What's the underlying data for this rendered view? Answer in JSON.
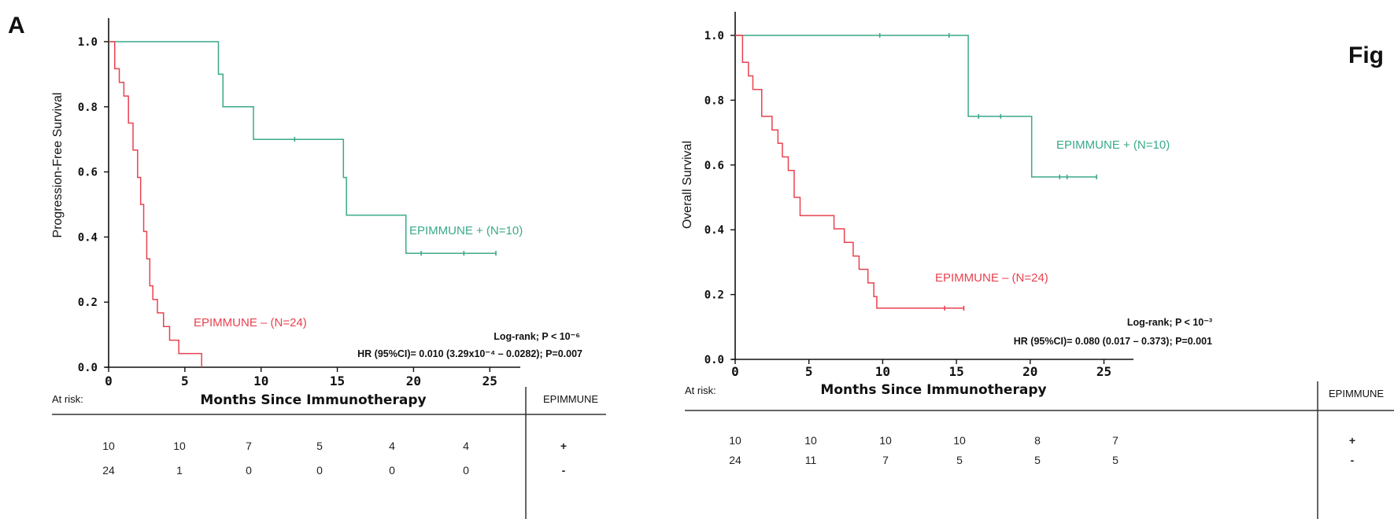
{
  "figure": {
    "panel_label": "A",
    "fig_label": "Fig"
  },
  "colors": {
    "positive": "#3aa98a",
    "negative": "#e8424f",
    "axis": "#111111"
  },
  "chart_data": [
    {
      "type": "line",
      "name": "pfs",
      "xlabel": "Months Since Immunotherapy",
      "ylabel": "Progression-Free Survival",
      "xlim": [
        0,
        27
      ],
      "ylim": [
        0,
        1.0
      ],
      "xticks": [
        "0",
        "5",
        "10",
        "15",
        "20",
        "25"
      ],
      "yticks": [
        "0.0",
        "0.2",
        "0.4",
        "0.6",
        "0.8",
        "1.0"
      ],
      "stat_line1": "Log-rank; P < 10⁻⁶",
      "stat_line2": "HR (95%CI)= 0.010 (3.29x10⁻⁴ – 0.0282); P=0.007",
      "series": [
        {
          "name": "EPIMMUNE + (N=10)",
          "color": "#3aa98a",
          "steps": [
            [
              0,
              1.0
            ],
            [
              7.2,
              0.9
            ],
            [
              7.5,
              0.8
            ],
            [
              9.5,
              0.7
            ],
            [
              15.4,
              0.583
            ],
            [
              15.6,
              0.467
            ],
            [
              19.5,
              0.35
            ],
            [
              25.4,
              0.35
            ]
          ],
          "censors": [
            [
              12.2,
              0.7
            ],
            [
              20.5,
              0.35
            ],
            [
              23.3,
              0.35
            ],
            [
              25.4,
              0.35
            ]
          ]
        },
        {
          "name": "EPIMMUNE – (N=24)",
          "color": "#e8424f",
          "steps": [
            [
              0,
              1.0
            ],
            [
              0.4,
              0.917
            ],
            [
              0.7,
              0.875
            ],
            [
              1.0,
              0.833
            ],
            [
              1.3,
              0.75
            ],
            [
              1.6,
              0.667
            ],
            [
              1.9,
              0.583
            ],
            [
              2.1,
              0.5
            ],
            [
              2.3,
              0.417
            ],
            [
              2.5,
              0.333
            ],
            [
              2.7,
              0.25
            ],
            [
              2.9,
              0.208
            ],
            [
              3.2,
              0.167
            ],
            [
              3.6,
              0.125
            ],
            [
              4.0,
              0.083
            ],
            [
              4.6,
              0.042
            ],
            [
              6.1,
              0.0
            ]
          ],
          "censors": []
        }
      ],
      "at_risk": {
        "label": "At risk:",
        "group_header": "EPIMMUNE",
        "rows": [
          {
            "values": [
              "10",
              "10",
              "7",
              "5",
              "4",
              "4"
            ],
            "group": "+"
          },
          {
            "values": [
              "24",
              "1",
              "0",
              "0",
              "0",
              "0"
            ],
            "group": "-"
          }
        ]
      }
    },
    {
      "type": "line",
      "name": "os",
      "xlabel": "Months Since Immunotherapy",
      "ylabel": "Overall Survival",
      "xlim": [
        0,
        27
      ],
      "ylim": [
        0,
        1.0
      ],
      "xticks": [
        "0",
        "5",
        "10",
        "15",
        "20",
        "25"
      ],
      "yticks": [
        "0.0",
        "0.2",
        "0.4",
        "0.6",
        "0.8",
        "1.0"
      ],
      "stat_line1": "Log-rank; P < 10⁻³",
      "stat_line2": "HR (95%CI)= 0.080 (0.017 – 0.373); P=0.001",
      "series": [
        {
          "name": "EPIMMUNE + (N=10)",
          "color": "#3aa98a",
          "steps": [
            [
              0,
              1.0
            ],
            [
              15.8,
              0.75
            ],
            [
              20.1,
              0.563
            ],
            [
              24.5,
              0.563
            ]
          ],
          "censors": [
            [
              9.8,
              1.0
            ],
            [
              14.5,
              1.0
            ],
            [
              16.5,
              0.75
            ],
            [
              18.0,
              0.75
            ],
            [
              22.0,
              0.563
            ],
            [
              22.5,
              0.563
            ],
            [
              24.5,
              0.563
            ]
          ]
        },
        {
          "name": "EPIMMUNE – (N=24)",
          "color": "#e8424f",
          "steps": [
            [
              0,
              1.0
            ],
            [
              0.5,
              0.917
            ],
            [
              0.9,
              0.875
            ],
            [
              1.2,
              0.833
            ],
            [
              1.8,
              0.75
            ],
            [
              2.5,
              0.708
            ],
            [
              2.9,
              0.667
            ],
            [
              3.2,
              0.625
            ],
            [
              3.6,
              0.583
            ],
            [
              4.0,
              0.5
            ],
            [
              4.4,
              0.444
            ],
            [
              6.7,
              0.403
            ],
            [
              7.4,
              0.361
            ],
            [
              8.0,
              0.319
            ],
            [
              8.4,
              0.278
            ],
            [
              9.0,
              0.236
            ],
            [
              9.4,
              0.194
            ],
            [
              9.6,
              0.158
            ],
            [
              15.5,
              0.158
            ]
          ],
          "censors": [
            [
              14.2,
              0.158
            ],
            [
              15.5,
              0.158
            ]
          ]
        }
      ],
      "at_risk": {
        "label": "At risk:",
        "group_header": "EPIMMUNE",
        "rows": [
          {
            "values": [
              "10",
              "10",
              "10",
              "10",
              "8",
              "7"
            ],
            "group": "+"
          },
          {
            "values": [
              "24",
              "11",
              "7",
              "5",
              "5",
              "5"
            ],
            "group": "-"
          }
        ]
      }
    }
  ]
}
